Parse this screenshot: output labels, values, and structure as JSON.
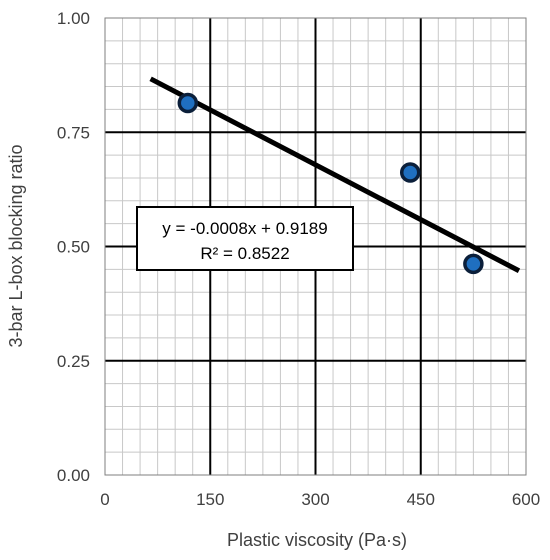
{
  "chart_data": {
    "type": "scatter",
    "xlabel": "Plastic viscosity (Pa·s)",
    "ylabel": "3-bar L-box blocking ratio",
    "xlim": [
      0,
      600
    ],
    "ylim": [
      0,
      1
    ],
    "x_ticks": [
      0,
      150,
      300,
      450,
      600
    ],
    "x_tick_labels": [
      "0",
      "150",
      "300",
      "450",
      "600"
    ],
    "y_ticks": [
      0,
      0.25,
      0.5,
      0.75,
      1.0
    ],
    "y_tick_labels": [
      "0.00",
      "0.25",
      "0.50",
      "0.75",
      "1.00"
    ],
    "x_minor_step": 25,
    "y_minor_step": 0.05,
    "grid": true,
    "legend": "none",
    "series": [
      {
        "points": [
          {
            "x": 118,
            "y": 0.814
          },
          {
            "x": 435,
            "y": 0.662
          },
          {
            "x": 525,
            "y": 0.462
          }
        ],
        "color": "#1f6fc0",
        "edge_color": "#0b1f3a"
      }
    ],
    "trendline": {
      "slope": -0.0008,
      "intercept": 0.9189,
      "x_range": [
        65,
        590
      ],
      "color": "#000000",
      "equation": "y = -0.0008x + 0.9189",
      "r_squared": "R² = 0.8522"
    }
  }
}
